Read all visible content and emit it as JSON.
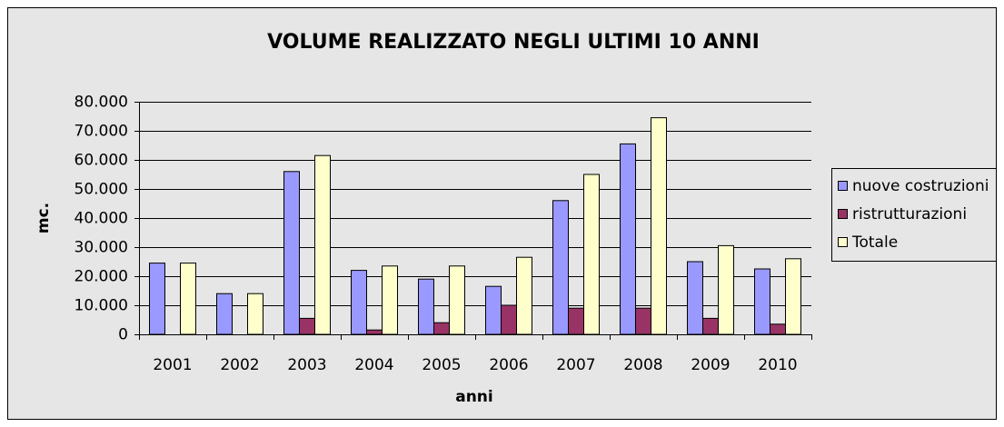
{
  "chart_data": {
    "type": "bar",
    "title": "VOLUME REALIZZATO NEGLI ULTIMI 10 ANNI",
    "x_label": "anni",
    "y_label": "mc.",
    "categories": [
      "2001",
      "2002",
      "2003",
      "2004",
      "2005",
      "2006",
      "2007",
      "2008",
      "2009",
      "2010"
    ],
    "series": [
      {
        "name": "nuove costruzioni",
        "color": "#9999ff",
        "values": [
          24500,
          14000,
          56000,
          22000,
          19000,
          16500,
          46000,
          65500,
          25000,
          22500
        ]
      },
      {
        "name": "ristrutturazioni",
        "color": "#993366",
        "values": [
          0,
          0,
          5500,
          1500,
          4000,
          10000,
          9000,
          9000,
          5500,
          3500
        ]
      },
      {
        "name": "Totale",
        "color": "#ffffcc",
        "values": [
          24500,
          14000,
          61500,
          23500,
          23500,
          26500,
          55000,
          74500,
          30500,
          26000
        ]
      }
    ],
    "ylim": [
      0,
      80000
    ],
    "yticks": [
      0,
      {
        "value": 10000,
        "label": "10.000"
      },
      {
        "value": 20000,
        "label": "20.000"
      },
      {
        "value": 30000,
        "label": "30.000"
      },
      {
        "value": 40000,
        "label": "40.000"
      },
      {
        "value": 50000,
        "label": "50.000"
      },
      {
        "value": 60000,
        "label": "60.000"
      },
      {
        "value": 70000,
        "label": "70.000"
      },
      {
        "value": 80000,
        "label": "80.000"
      }
    ],
    "grid": true,
    "legend": "right"
  }
}
